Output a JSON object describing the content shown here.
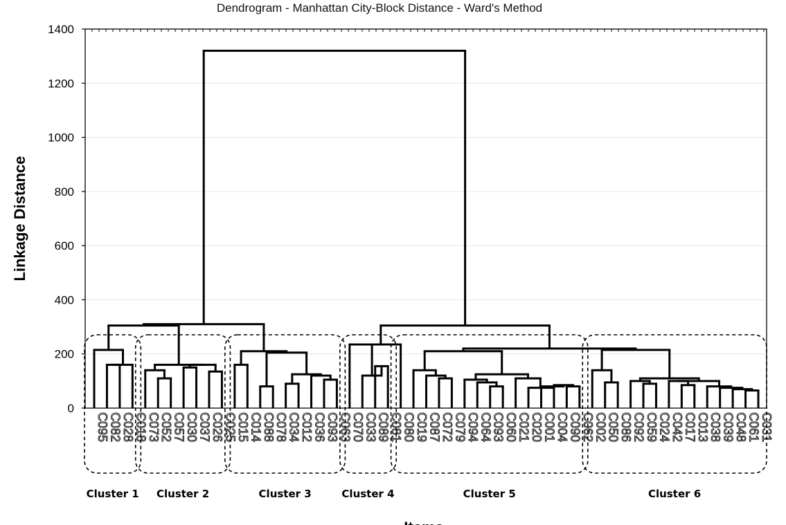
{
  "chart_data": {
    "type": "dendrogram",
    "title": "Dendrogram - Manhattan City-Block Distance - Ward's Method",
    "ylabel": "Linkage Distance",
    "xlabel": "Items",
    "ylim": [
      0,
      1400
    ],
    "yticks": [
      0,
      200,
      400,
      600,
      800,
      1000,
      1200,
      1400
    ],
    "grid": true,
    "leaves": [
      "C095",
      "C082",
      "C028",
      "C018",
      "C073",
      "C052",
      "C057",
      "C030",
      "C037",
      "C026",
      "C025",
      "C015",
      "C014",
      "C088",
      "C078",
      "C034",
      "C012",
      "C036",
      "C093",
      "C063",
      "C070",
      "C033",
      "C089",
      "C081",
      "C080",
      "C019",
      "C087",
      "C072",
      "C079",
      "C094",
      "C064",
      "C093",
      "C060",
      "C021",
      "C020",
      "C001",
      "C004",
      "C090",
      "C062",
      "C002",
      "C050",
      "C086",
      "C092",
      "C059",
      "C024",
      "C042",
      "C017",
      "C013",
      "C038",
      "C039",
      "C048",
      "C061",
      "C031"
    ],
    "clusters": [
      {
        "name": "Cluster 1",
        "first_leaf": 0,
        "last_leaf": 3
      },
      {
        "name": "Cluster 2",
        "first_leaf": 4,
        "last_leaf": 10
      },
      {
        "name": "Cluster 3",
        "first_leaf": 11,
        "last_leaf": 19
      },
      {
        "name": "Cluster 4",
        "first_leaf": 20,
        "last_leaf": 23
      },
      {
        "name": "Cluster 5",
        "first_leaf": 24,
        "last_leaf": 38
      },
      {
        "name": "Cluster 6",
        "first_leaf": 39,
        "last_leaf": 52
      }
    ],
    "tree": [
      [
        [
          [
            0,
            [
              [
                1,
                2
              ],
              3
            ]
          ],
          [
            [
              4,
              [
                5,
                6
              ]
            ],
            [
              [
                7,
                8
              ],
              [
                9,
                10
              ]
            ]
          ]
        ],
        [
          [
            11,
            12
          ],
          [
            [
              13,
              14
            ],
            [
              [
                15,
                16
              ],
              [
                17,
                [
                  18,
                  19
                ]
              ]
            ]
          ]
        ]
      ],
      [
        [
          [
            20,
            [
              21,
              [
                22,
                23
              ]
            ]
          ],
          24
        ],
        [
          [
            [
              25,
              [
                26,
                [
                  27,
                  28
                ]
              ]
            ],
            [
              [
                29,
                [
                  30,
                  [
                    31,
                    32
                  ]
                ]
              ],
              [
                33,
                [
                  34,
                  [
                    35,
                    [
                      36,
                      [
                        37,
                        38
                      ]
                    ]
                  ]
                ]
              ]
            ]
          ],
          [
            [
              39,
              [
                40,
                41
              ]
            ],
            [
              [
                42,
                [
                  43,
                  44
                ]
              ],
              [
                [
                  45,
                  [
                    46,
                    47
                  ]
                ],
                [
                  48,
                  [
                    49,
                    [
                      50,
                      [
                        51,
                        52
                      ]
                    ]
                  ]
                ]
              ]
            ]
          ]
        ]
      ]
    ],
    "heights": [
      [
        [
          [
            [
              215,
              [
                [
                  160,
                  [
                    160,
                    0
                  ]
                ],
                160
              ]
            ],
            [
              [
                [
                  140,
                  [
                    [
                      80,
                      [
                        0,
                        0
                      ]
                    ]
                  ]
                ]
              ]
            ]
          ]
        ]
      ]
    ]
  }
}
